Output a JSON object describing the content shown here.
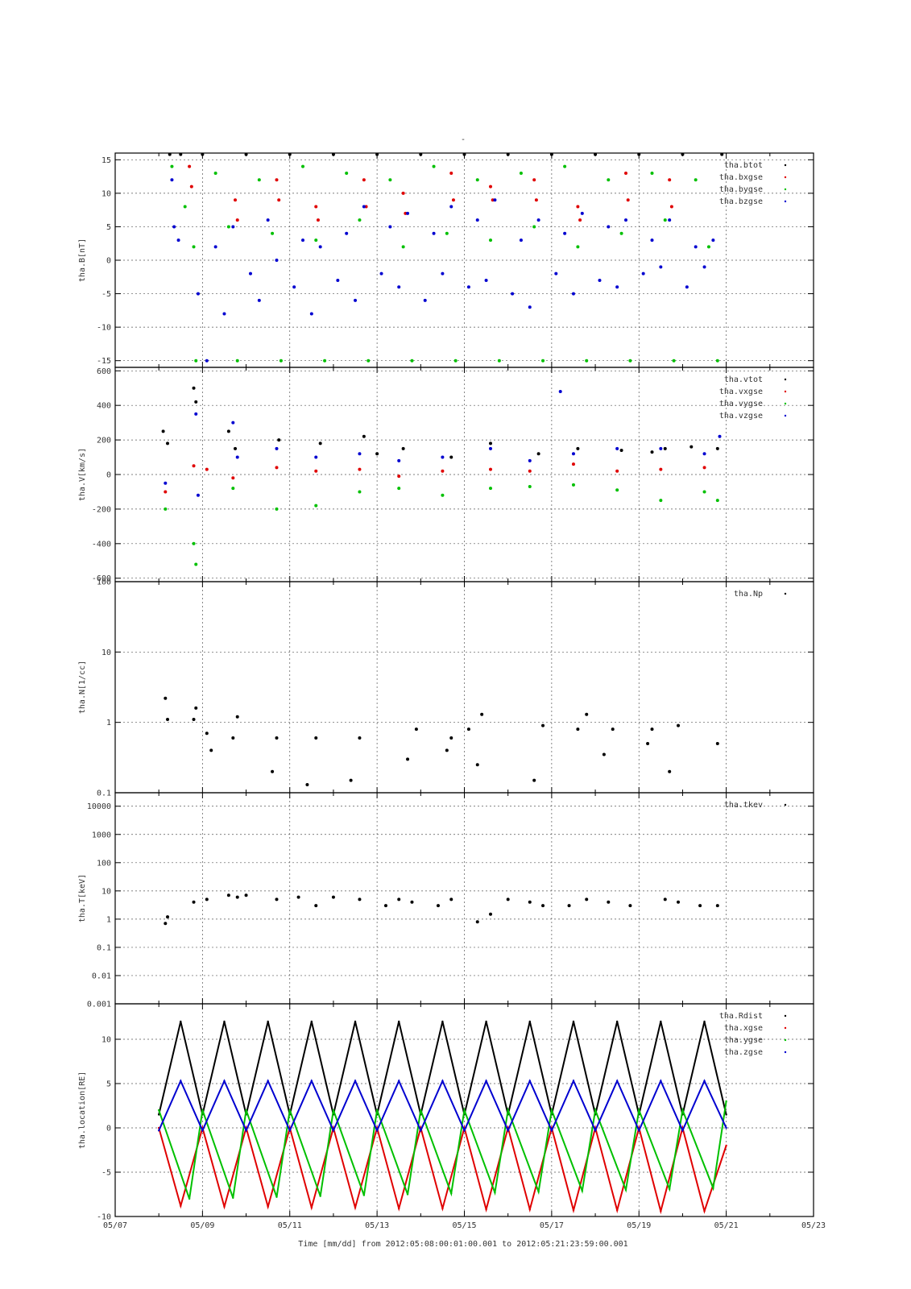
{
  "figure": {
    "title": "-",
    "footer": "Time [mm/dd]  from 2012:05:08:00:01:00.001  to  2012:05:21:23:59:00.001"
  },
  "chart_data": [
    {
      "type": "scatter",
      "ylabel": "tha.B[nT]",
      "ylim": [
        -16,
        16
      ],
      "yscale": "linear",
      "yticks": [
        -15,
        -10,
        -5,
        0,
        5,
        10,
        15
      ],
      "ytick_labels": [
        "-15",
        "-10",
        "-5",
        "0",
        "5",
        "10",
        "15"
      ],
      "xlim": [
        0,
        16
      ],
      "xticks": [
        0,
        2,
        4,
        6,
        8,
        10,
        12,
        14,
        16
      ],
      "xtick_labels": [
        "05/07",
        "05/09",
        "05/11",
        "05/13",
        "05/15",
        "05/17",
        "05/19",
        "05/21",
        "05/23"
      ],
      "grid": true,
      "legend_position": "top-right",
      "series": [
        {
          "name": "tha.btot",
          "color": "#000000",
          "x": [
            1.25,
            1.5,
            2.0,
            3.0,
            4.0,
            5.0,
            6.0,
            7.0,
            8.0,
            9.0,
            10.0,
            11.0,
            12.0,
            13.0,
            13.9
          ],
          "y": [
            15.8,
            15.8,
            15.8,
            15.8,
            15.8,
            15.8,
            15.8,
            15.8,
            15.8,
            15.8,
            15.8,
            15.8,
            15.8,
            15.8,
            15.8
          ]
        },
        {
          "name": "tha.bxgse",
          "color": "#e00000",
          "x": [
            1.7,
            1.75,
            2.75,
            2.8,
            3.7,
            3.75,
            4.6,
            4.65,
            5.7,
            5.75,
            6.6,
            6.65,
            7.7,
            7.75,
            8.6,
            8.65,
            9.6,
            9.65,
            10.6,
            10.65,
            11.7,
            11.75,
            12.7,
            12.75
          ],
          "y": [
            14,
            11,
            9,
            6,
            12,
            9,
            8,
            6,
            12,
            8,
            10,
            7,
            13,
            9,
            11,
            9,
            12,
            9,
            8,
            6,
            13,
            9,
            12,
            8
          ]
        },
        {
          "name": "tha.bygse",
          "color": "#00c000",
          "x": [
            1.3,
            1.6,
            1.8,
            1.85,
            2.3,
            2.6,
            2.8,
            3.3,
            3.6,
            3.8,
            4.3,
            4.6,
            4.8,
            5.3,
            5.6,
            5.8,
            6.3,
            6.6,
            6.8,
            7.3,
            7.6,
            7.8,
            8.3,
            8.6,
            8.8,
            9.3,
            9.6,
            9.8,
            10.3,
            10.6,
            10.8,
            11.3,
            11.6,
            11.8,
            12.3,
            12.6,
            12.8,
            13.3,
            13.6,
            13.8
          ],
          "y": [
            14,
            8,
            2,
            -15,
            13,
            5,
            -15,
            12,
            4,
            -15,
            14,
            3,
            -15,
            13,
            6,
            -15,
            12,
            2,
            -15,
            14,
            4,
            -15,
            12,
            3,
            -15,
            13,
            5,
            -15,
            14,
            2,
            -15,
            12,
            4,
            -15,
            13,
            6,
            -15,
            12,
            2,
            -15
          ]
        },
        {
          "name": "tha.bzgse",
          "color": "#0000d0",
          "x": [
            1.3,
            1.35,
            1.45,
            1.9,
            2.1,
            2.3,
            2.5,
            2.7,
            3.1,
            3.3,
            3.5,
            3.7,
            4.1,
            4.3,
            4.5,
            4.7,
            5.1,
            5.3,
            5.5,
            5.7,
            6.1,
            6.3,
            6.5,
            6.7,
            7.1,
            7.3,
            7.5,
            7.7,
            8.1,
            8.3,
            8.5,
            8.7,
            9.1,
            9.3,
            9.5,
            9.7,
            10.1,
            10.3,
            10.5,
            10.7,
            11.1,
            11.3,
            11.5,
            11.7,
            12.1,
            12.3,
            12.5,
            12.7,
            13.1,
            13.3,
            13.5,
            13.7
          ],
          "y": [
            12,
            5,
            3,
            -5,
            -15,
            2,
            -8,
            5,
            -2,
            -6,
            6,
            0,
            -4,
            3,
            -8,
            2,
            -3,
            4,
            -6,
            8,
            -2,
            5,
            -4,
            7,
            -6,
            4,
            -2,
            8,
            -4,
            6,
            -3,
            9,
            -5,
            3,
            -7,
            6,
            -2,
            4,
            -5,
            7,
            -3,
            5,
            -4,
            6,
            -2,
            3,
            -1,
            6,
            -4,
            2,
            -1,
            3
          ]
        }
      ]
    },
    {
      "type": "scatter",
      "ylabel": "tha.V[km/s]",
      "ylim": [
        -620,
        620
      ],
      "yscale": "linear",
      "yticks": [
        -600,
        -400,
        -200,
        0,
        200,
        400,
        600
      ],
      "ytick_labels": [
        "-600",
        "-400",
        "-200",
        "0",
        "200",
        "400",
        "600"
      ],
      "xlim": [
        0,
        16
      ],
      "xticks": [
        0,
        2,
        4,
        6,
        8,
        10,
        12,
        14,
        16
      ],
      "grid": true,
      "legend_position": "top-right",
      "series": [
        {
          "name": "tha.vtot",
          "color": "#000000",
          "x": [
            1.1,
            1.2,
            1.8,
            1.85,
            2.6,
            2.75,
            3.75,
            4.7,
            5.7,
            6.0,
            6.6,
            7.7,
            8.6,
            9.7,
            10.6,
            11.6,
            12.3,
            12.6,
            13.2,
            13.8
          ],
          "y": [
            250,
            180,
            500,
            420,
            250,
            150,
            200,
            180,
            220,
            120,
            150,
            100,
            180,
            120,
            150,
            140,
            130,
            150,
            160,
            150
          ]
        },
        {
          "name": "tha.vxgse",
          "color": "#e00000",
          "x": [
            1.15,
            1.8,
            2.1,
            2.7,
            3.7,
            4.6,
            5.6,
            6.5,
            7.5,
            8.6,
            9.5,
            10.5,
            11.5,
            12.5,
            13.5
          ],
          "y": [
            -100,
            50,
            30,
            -20,
            40,
            20,
            30,
            -10,
            20,
            30,
            20,
            60,
            20,
            30,
            40
          ]
        },
        {
          "name": "tha.vygse",
          "color": "#00c000",
          "x": [
            1.15,
            1.8,
            1.85,
            2.7,
            3.7,
            4.6,
            5.6,
            6.5,
            7.5,
            8.6,
            9.5,
            10.5,
            11.5,
            12.5,
            13.5,
            13.8
          ],
          "y": [
            -200,
            -400,
            -520,
            -80,
            -200,
            -180,
            -100,
            -80,
            -120,
            -80,
            -70,
            -60,
            -90,
            -150,
            -100,
            -150
          ]
        },
        {
          "name": "tha.vzgse",
          "color": "#0000d0",
          "x": [
            1.15,
            1.85,
            1.9,
            2.7,
            2.8,
            3.7,
            4.6,
            5.6,
            6.5,
            7.5,
            8.6,
            9.5,
            10.2,
            10.5,
            11.5,
            12.5,
            13.5,
            13.85
          ],
          "y": [
            -50,
            350,
            -120,
            300,
            100,
            150,
            100,
            120,
            80,
            100,
            150,
            80,
            480,
            120,
            150,
            150,
            120,
            220
          ]
        }
      ]
    },
    {
      "type": "scatter",
      "ylabel": "tha.N[1/cc]",
      "ylim": [
        0.1,
        100
      ],
      "yscale": "log",
      "yticks": [
        0.1,
        1,
        10,
        100
      ],
      "ytick_labels": [
        "0.1",
        "1",
        "10",
        "100"
      ],
      "xlim": [
        0,
        16
      ],
      "xticks": [
        0,
        2,
        4,
        6,
        8,
        10,
        12,
        14,
        16
      ],
      "grid": true,
      "legend_position": "top-right",
      "series": [
        {
          "name": "tha.Np",
          "color": "#000000",
          "x": [
            1.15,
            1.2,
            1.8,
            1.85,
            2.1,
            2.2,
            2.7,
            2.8,
            3.6,
            3.7,
            4.4,
            4.6,
            5.4,
            5.6,
            6.7,
            6.9,
            7.6,
            7.7,
            8.1,
            8.3,
            8.4,
            9.6,
            9.8,
            10.6,
            10.8,
            11.2,
            11.4,
            12.2,
            12.3,
            12.7,
            12.9,
            13.8
          ],
          "y": [
            2.2,
            1.1,
            1.1,
            1.6,
            0.7,
            0.4,
            0.6,
            1.2,
            0.2,
            0.6,
            0.13,
            0.6,
            0.15,
            0.6,
            0.3,
            0.8,
            0.4,
            0.6,
            0.8,
            0.25,
            1.3,
            0.15,
            0.9,
            0.8,
            1.3,
            0.35,
            0.8,
            0.5,
            0.8,
            0.2,
            0.9,
            0.5
          ]
        }
      ]
    },
    {
      "type": "scatter",
      "ylabel": "tha.T[keV]",
      "ylim": [
        0.001,
        30000
      ],
      "yscale": "log",
      "yticks": [
        0.001,
        0.01,
        0.1,
        1,
        10,
        100,
        1000,
        10000
      ],
      "ytick_labels": [
        "0.001",
        "0.01",
        "0.1",
        "1",
        "10",
        "100",
        "1000",
        "10000"
      ],
      "xlim": [
        0,
        16
      ],
      "xticks": [
        0,
        2,
        4,
        6,
        8,
        10,
        12,
        14,
        16
      ],
      "grid": true,
      "legend_position": "top-right",
      "series": [
        {
          "name": "tha.tkev",
          "color": "#000000",
          "x": [
            1.15,
            1.2,
            1.8,
            2.1,
            2.6,
            2.8,
            3.0,
            3.7,
            4.2,
            4.6,
            5.0,
            5.6,
            6.2,
            6.5,
            6.8,
            7.4,
            7.7,
            8.3,
            8.6,
            9.0,
            9.5,
            9.8,
            10.4,
            10.8,
            11.3,
            11.8,
            12.6,
            12.9,
            13.4,
            13.8
          ],
          "y": [
            0.7,
            1.2,
            4.0,
            5.0,
            7.0,
            6.0,
            7.0,
            5.0,
            6.0,
            3.0,
            6.0,
            5.0,
            3.0,
            5.0,
            4.0,
            3.0,
            5.0,
            0.8,
            1.5,
            5.0,
            4.0,
            3.0,
            3.0,
            5.0,
            4.0,
            3.0,
            5.0,
            4.0,
            3.0,
            3.0
          ]
        }
      ]
    },
    {
      "type": "line",
      "ylabel": "tha.location[RE]",
      "ylim": [
        -10,
        14
      ],
      "yscale": "linear",
      "yticks": [
        -10,
        -5,
        0,
        5,
        10
      ],
      "ytick_labels": [
        "-10",
        "-5",
        "0",
        "5",
        "10"
      ],
      "xlim": [
        0,
        16
      ],
      "xticks": [
        0,
        2,
        4,
        6,
        8,
        10,
        12,
        14,
        16
      ],
      "xtick_labels": [
        "05/07",
        "05/09",
        "05/11",
        "05/13",
        "05/15",
        "05/17",
        "05/19",
        "05/21",
        "05/23"
      ],
      "grid": true,
      "legend_position": "top-right",
      "series": [
        {
          "name": "tha.Rdist",
          "color": "#000000",
          "x": [
            1.0,
            1.5,
            2.0,
            2.5,
            3.0,
            3.5,
            4.0,
            4.5,
            5.0,
            5.5,
            6.0,
            6.5,
            7.0,
            7.5,
            8.0,
            8.5,
            9.0,
            9.5,
            10.0,
            10.5,
            11.0,
            11.5,
            12.0,
            12.5,
            13.0,
            13.5,
            14.0
          ],
          "y": [
            1.5,
            12,
            1.5,
            12,
            1.5,
            12,
            1.5,
            12,
            1.5,
            12,
            1.5,
            12,
            1.5,
            12,
            1.5,
            12,
            1.5,
            12,
            1.5,
            12,
            1.5,
            12,
            1.5,
            12,
            1.5,
            12,
            1.5
          ]
        },
        {
          "name": "tha.xgse",
          "color": "#e00000",
          "x": [
            1.0,
            1.5,
            2.0,
            2.5,
            3.0,
            3.5,
            4.0,
            4.5,
            5.0,
            5.5,
            6.0,
            6.5,
            7.0,
            7.5,
            8.0,
            8.5,
            9.0,
            9.5,
            10.0,
            10.5,
            11.0,
            11.5,
            12.0,
            12.5,
            13.0,
            13.5,
            14.0
          ],
          "y": [
            0,
            -8.8,
            0,
            -8.9,
            0,
            -8.9,
            0,
            -9.0,
            0,
            -9.0,
            0,
            -9.1,
            0,
            -9.1,
            0,
            -9.2,
            0,
            -9.2,
            0,
            -9.3,
            0,
            -9.3,
            0,
            -9.4,
            0,
            -9.4,
            -2
          ]
        },
        {
          "name": "tha.ygse",
          "color": "#00c000",
          "x": [
            1.0,
            1.7,
            2.0,
            2.7,
            3.0,
            3.7,
            4.0,
            4.7,
            5.0,
            5.7,
            6.0,
            6.7,
            7.0,
            7.7,
            8.0,
            8.7,
            9.0,
            9.7,
            10.0,
            10.7,
            11.0,
            11.7,
            12.0,
            12.7,
            13.0,
            13.7,
            14.0
          ],
          "y": [
            2,
            -8.0,
            2,
            -7.9,
            2,
            -7.8,
            2,
            -7.7,
            2,
            -7.6,
            2,
            -7.5,
            2,
            -7.4,
            2,
            -7.3,
            2,
            -7.2,
            2,
            -7.1,
            2,
            -7.0,
            2,
            -6.9,
            2,
            -6.8,
            3
          ]
        },
        {
          "name": "tha.zgse",
          "color": "#0000d0",
          "x": [
            1.0,
            1.5,
            2.0,
            2.5,
            3.0,
            3.5,
            4.0,
            4.5,
            5.0,
            5.5,
            6.0,
            6.5,
            7.0,
            7.5,
            8.0,
            8.5,
            9.0,
            9.5,
            10.0,
            10.5,
            11.0,
            11.5,
            12.0,
            12.5,
            13.0,
            13.5,
            14.0
          ],
          "y": [
            -0.3,
            5.3,
            -0.3,
            5.3,
            -0.3,
            5.3,
            -0.3,
            5.3,
            -0.3,
            5.3,
            -0.3,
            5.3,
            -0.3,
            5.3,
            -0.3,
            5.3,
            -0.3,
            5.3,
            -0.3,
            5.3,
            -0.3,
            5.3,
            -0.3,
            5.3,
            -0.3,
            5.3,
            0
          ]
        }
      ]
    }
  ]
}
